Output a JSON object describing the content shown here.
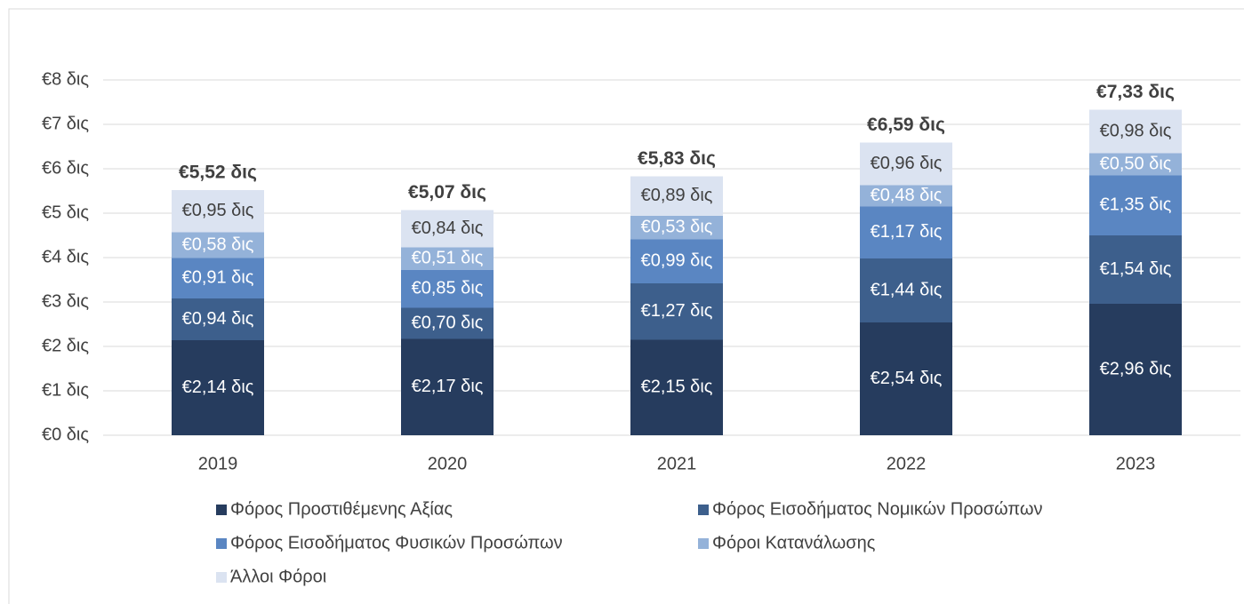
{
  "chart_data": {
    "type": "stacked_bar",
    "categories": [
      "2019",
      "2020",
      "2021",
      "2022",
      "2023"
    ],
    "series": [
      {
        "name": "Φόρος Προστιθέμενης Αξίας",
        "color": "#263c5e",
        "label_color": "#ffffff",
        "values": [
          2.14,
          2.17,
          2.15,
          2.54,
          2.96
        ],
        "value_labels": [
          "€2,14 δις",
          "€2,17 δις",
          "€2,15 δις",
          "€2,54 δις",
          "€2,96 δις"
        ]
      },
      {
        "name": "Φόρος Εισοδήματος Νομικών Προσώπων",
        "color": "#3d5f8c",
        "label_color": "#ffffff",
        "values": [
          0.94,
          0.7,
          1.27,
          1.44,
          1.54
        ],
        "value_labels": [
          "€0,94 δις",
          "€0,70 δις",
          "€1,27 δις",
          "€1,44 δις",
          "€1,54 δις"
        ]
      },
      {
        "name": "Φόρος Εισοδήματος Φυσικών Προσώπων",
        "color": "#5a86c2",
        "label_color": "#ffffff",
        "values": [
          0.91,
          0.85,
          0.99,
          1.17,
          1.35
        ],
        "value_labels": [
          "€0,91 δις",
          "€0,85 δις",
          "€0,99 δις",
          "€1,17 δις",
          "€1,35 δις"
        ]
      },
      {
        "name": "Φόροι Κατανάλωσης",
        "color": "#94b2d9",
        "label_color": "#ffffff",
        "values": [
          0.58,
          0.51,
          0.53,
          0.48,
          0.5
        ],
        "value_labels": [
          "€0,58 δις",
          "€0,51 δις",
          "€0,53 δις",
          "€0,48 δις",
          "€0,50 δις"
        ]
      },
      {
        "name": "Άλλοι Φόροι",
        "color": "#dbe3f1",
        "label_color": "#404040",
        "values": [
          0.95,
          0.84,
          0.89,
          0.96,
          0.98
        ],
        "value_labels": [
          "€0,95 δις",
          "€0,84 δις",
          "€0,89 δις",
          "€0,96 δις",
          "€0,98 δις"
        ]
      }
    ],
    "totals": [
      5.52,
      5.07,
      5.83,
      6.59,
      7.33
    ],
    "total_labels": [
      "€5,52 δις",
      "€5,07 δις",
      "€5,83 δις",
      "€6,59 δις",
      "€7,33 δις"
    ],
    "ylim": [
      0,
      8
    ],
    "yticks": [
      {
        "value": 0,
        "label": "€0 δις"
      },
      {
        "value": 1,
        "label": "€1 δις"
      },
      {
        "value": 2,
        "label": "€2 δις"
      },
      {
        "value": 3,
        "label": "€3 δις"
      },
      {
        "value": 4,
        "label": "€4 δις"
      },
      {
        "value": 5,
        "label": "€5 δις"
      },
      {
        "value": 6,
        "label": "€6 δις"
      },
      {
        "value": 7,
        "label": "€7 δις"
      },
      {
        "value": 8,
        "label": "€8 δις"
      }
    ],
    "grid": true,
    "legend": "bottom"
  }
}
